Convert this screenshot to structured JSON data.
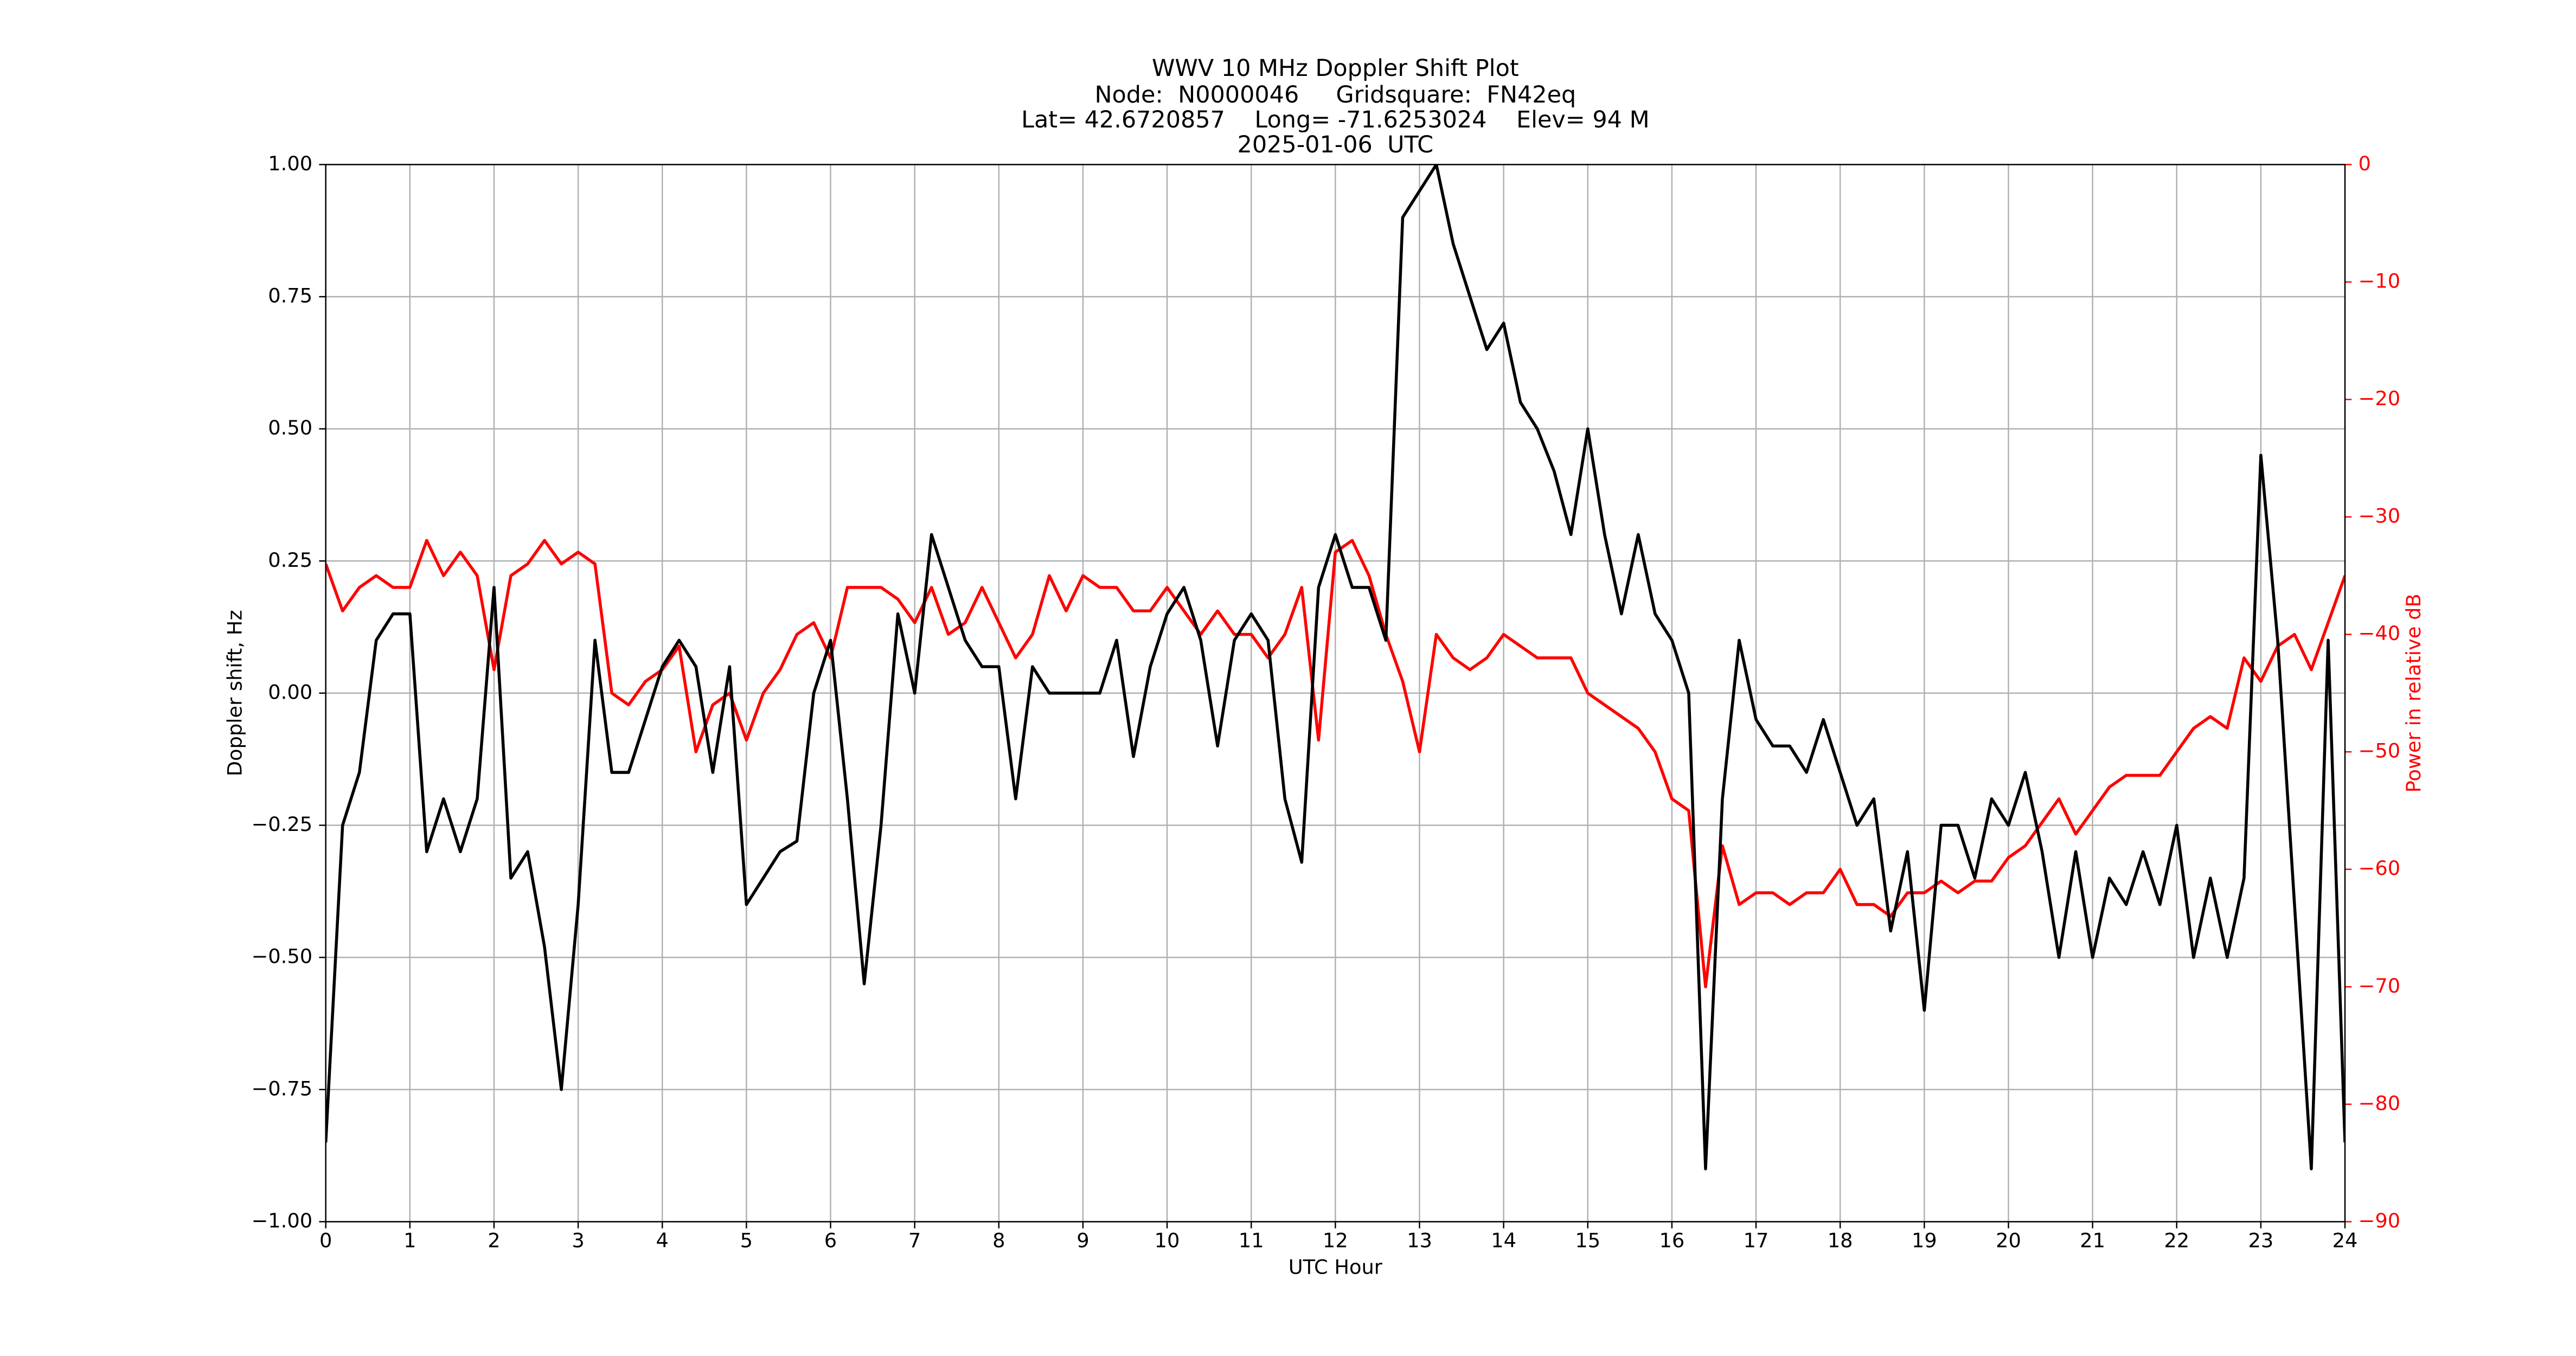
{
  "chart_data": {
    "type": "line",
    "title": "WWV 10 MHz Doppler Shift Plot",
    "subtitle": [
      "Node:  N0000046     Gridsquare:  FN42eq",
      "Lat= 42.6720857    Long= -71.6253024    Elev= 94 M",
      "2025-01-06  UTC"
    ],
    "xlabel": "UTC Hour",
    "ylabel": "Doppler shift, Hz",
    "y2label": "Power in relative dB",
    "y2label_color": "#ff0000",
    "grid": true,
    "xlim": [
      0,
      24
    ],
    "xticks": [
      0,
      1,
      2,
      3,
      4,
      5,
      6,
      7,
      8,
      9,
      10,
      11,
      12,
      13,
      14,
      15,
      16,
      17,
      18,
      19,
      20,
      21,
      22,
      23,
      24
    ],
    "ylim": [
      -1,
      1
    ],
    "yticks": [
      {
        "value": -1,
        "label": "−1.00"
      },
      {
        "value": -0.75,
        "label": "−0.75"
      },
      {
        "value": -0.5,
        "label": "−0.50"
      },
      {
        "value": -0.25,
        "label": "−0.25"
      },
      {
        "value": 0,
        "label": "0.00"
      },
      {
        "value": 0.25,
        "label": "0.25"
      },
      {
        "value": 0.5,
        "label": "0.50"
      },
      {
        "value": 0.75,
        "label": "0.75"
      },
      {
        "value": 1,
        "label": "1.00"
      }
    ],
    "y2lim": [
      -90,
      0
    ],
    "y2ticks": [
      {
        "value": -90,
        "label": "−90"
      },
      {
        "value": -80,
        "label": "−80"
      },
      {
        "value": -70,
        "label": "−70"
      },
      {
        "value": -60,
        "label": "−60"
      },
      {
        "value": -50,
        "label": "−50"
      },
      {
        "value": -40,
        "label": "−40"
      },
      {
        "value": -30,
        "label": "−30"
      },
      {
        "value": -20,
        "label": "−20"
      },
      {
        "value": -10,
        "label": "−10"
      },
      0
    ],
    "x": [
      0,
      0.2,
      0.4,
      0.6,
      0.8,
      1,
      1.2,
      1.4,
      1.6,
      1.8,
      2,
      2.2,
      2.4,
      2.6,
      2.8,
      3,
      3.2,
      3.4,
      3.6,
      3.8,
      4,
      4.2,
      4.4,
      4.6,
      4.8,
      5,
      5.2,
      5.4,
      5.6,
      5.8,
      6,
      6.2,
      6.4,
      6.6,
      6.8,
      7,
      7.2,
      7.4,
      7.6,
      7.8,
      8,
      8.2,
      8.4,
      8.6,
      8.8,
      9,
      9.2,
      9.4,
      9.6,
      9.8,
      10,
      10.2,
      10.4,
      10.6,
      10.8,
      11,
      11.2,
      11.4,
      11.6,
      11.8,
      12,
      12.2,
      12.4,
      12.6,
      12.8,
      13,
      13.2,
      13.4,
      13.6,
      13.8,
      14,
      14.2,
      14.4,
      14.6,
      14.8,
      15,
      15.2,
      15.4,
      15.6,
      15.8,
      16,
      16.2,
      16.4,
      16.6,
      16.8,
      17,
      17.2,
      17.4,
      17.6,
      17.8,
      18,
      18.2,
      18.4,
      18.6,
      18.8,
      19,
      19.2,
      19.4,
      19.6,
      19.8,
      20,
      20.2,
      20.4,
      20.6,
      20.8,
      21,
      21.2,
      21.4,
      21.6,
      21.8,
      22,
      22.2,
      22.4,
      22.6,
      22.8,
      23,
      23.2,
      23.4,
      23.6,
      23.8,
      24
    ],
    "series": [
      {
        "name": "Doppler shift",
        "color": "#000000",
        "axis": "y",
        "values": [
          -0.85,
          -0.25,
          -0.15,
          0.1,
          0.15,
          0.15,
          -0.3,
          -0.2,
          -0.3,
          -0.2,
          0.2,
          -0.35,
          -0.3,
          -0.48,
          -0.75,
          -0.4,
          0.1,
          -0.15,
          -0.15,
          -0.05,
          0.05,
          0.1,
          0.05,
          -0.15,
          0.05,
          -0.4,
          -0.35,
          -0.3,
          -0.28,
          0,
          0.1,
          -0.2,
          -0.55,
          -0.25,
          0.15,
          0,
          0.3,
          0.2,
          0.1,
          0.05,
          0.05,
          -0.2,
          0.05,
          0,
          0,
          0,
          0,
          0.1,
          -0.12,
          0.05,
          0.15,
          0.2,
          0.1,
          -0.1,
          0.1,
          0.15,
          0.1,
          -0.2,
          -0.32,
          0.2,
          0.3,
          0.2,
          0.2,
          0.1,
          0.9,
          0.95,
          1,
          0.85,
          0.75,
          0.65,
          0.7,
          0.55,
          0.5,
          0.42,
          0.3,
          0.5,
          0.3,
          0.15,
          0.3,
          0.15,
          0.1,
          0,
          -0.9,
          -0.2,
          0.1,
          -0.05,
          -0.1,
          -0.1,
          -0.15,
          -0.05,
          -0.15,
          -0.25,
          -0.2,
          -0.45,
          -0.3,
          -0.6,
          -0.25,
          -0.25,
          -0.35,
          -0.2,
          -0.25,
          -0.15,
          -0.3,
          -0.5,
          -0.3,
          -0.5,
          -0.35,
          -0.4,
          -0.3,
          -0.4,
          -0.25,
          -0.5,
          -0.35,
          -0.5,
          -0.35,
          0.45,
          0.1,
          -0.4,
          -0.9,
          0.1,
          -0.85
        ]
      },
      {
        "name": "Power",
        "color": "#ff0000",
        "axis": "y2",
        "values": [
          -34,
          -38,
          -36,
          -35,
          -36,
          -36,
          -32,
          -35,
          -33,
          -35,
          -43,
          -35,
          -34,
          -32,
          -34,
          -33,
          -34,
          -45,
          -46,
          -44,
          -43,
          -41,
          -50,
          -46,
          -45,
          -49,
          -45,
          -43,
          -40,
          -39,
          -42,
          -36,
          -36,
          -36,
          -37,
          -39,
          -36,
          -40,
          -39,
          -36,
          -39,
          -42,
          -40,
          -35,
          -38,
          -35,
          -36,
          -36,
          -38,
          -38,
          -36,
          -38,
          -40,
          -38,
          -40,
          -40,
          -42,
          -40,
          -36,
          -49,
          -33,
          -32,
          -35,
          -40,
          -44,
          -50,
          -40,
          -42,
          -43,
          -42,
          -40,
          -41,
          -42,
          -42,
          -42,
          -45,
          -46,
          -47,
          -48,
          -50,
          -54,
          -55,
          -70,
          -58,
          -63,
          -62,
          -62,
          -63,
          -62,
          -62,
          -60,
          -63,
          -63,
          -64,
          -62,
          -62,
          -61,
          -62,
          -61,
          -61,
          -59,
          -58,
          -56,
          -54,
          -57,
          -55,
          -53,
          -52,
          -52,
          -52,
          -50,
          -48,
          -47,
          -48,
          -42,
          -44,
          -41,
          -40,
          -43,
          -39,
          -35
        ]
      }
    ]
  }
}
